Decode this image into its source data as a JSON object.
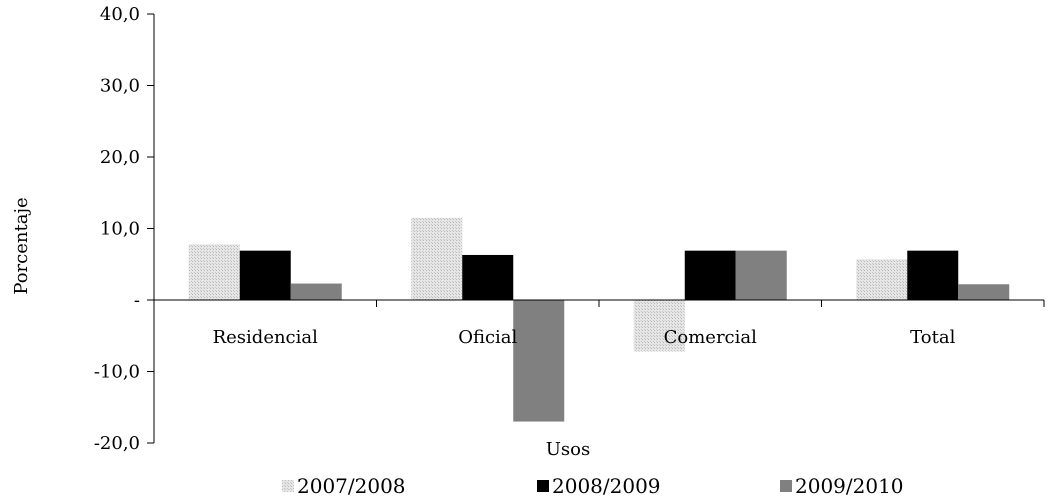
{
  "chart_data": {
    "type": "bar",
    "categories": [
      "Residencial",
      "Oficial",
      "Comercial",
      "Total"
    ],
    "series": [
      {
        "name": "2007/2008",
        "values": [
          7.8,
          11.5,
          -7.2,
          5.7
        ],
        "color": "#d4d4d4",
        "pattern": "dotted-light"
      },
      {
        "name": "2008/2009",
        "values": [
          6.9,
          6.3,
          6.9,
          6.9
        ],
        "color": "#000000"
      },
      {
        "name": "2009/2010",
        "values": [
          2.3,
          -17.0,
          6.9,
          2.2
        ],
        "color": "#808080"
      }
    ],
    "ylabel": "Porcentaje",
    "xlabel": "Usos",
    "ylim": [
      -20,
      40
    ],
    "yticks": [
      -20,
      -10,
      0,
      10,
      20,
      30,
      40
    ],
    "ytick_labels": [
      "-20,0",
      "-10,0",
      "-",
      "10,0",
      "20,0",
      "30,0",
      "40,0"
    ],
    "grid": false,
    "legend_position": "bottom"
  }
}
